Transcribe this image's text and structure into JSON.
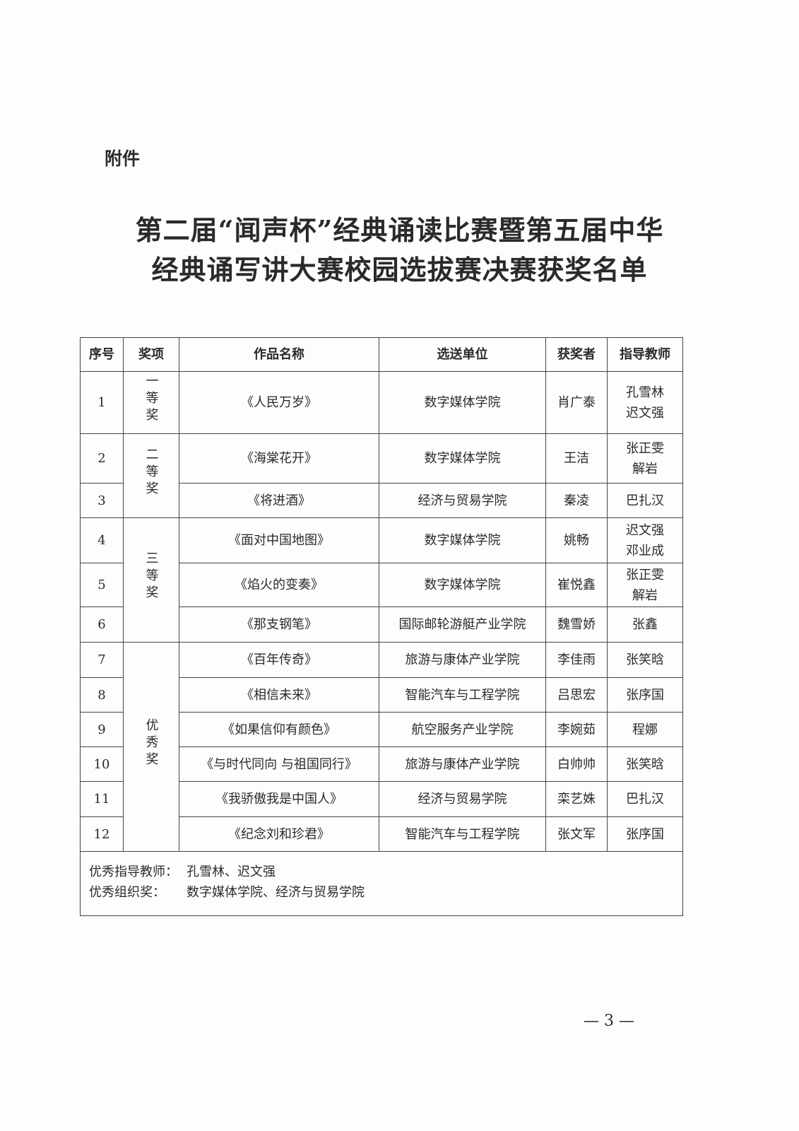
{
  "attachment_label": "附件",
  "title_lines": [
    "第二届“闻声杯”经典诵读比赛暨第五届中华",
    "经典诵写讲大赛校园选拔赛决赛获奖名单"
  ],
  "table": {
    "headers": [
      "序号",
      "奖项",
      "作品名称",
      "选送单位",
      "获奖者",
      "指导教师"
    ],
    "awards": [
      "一等奖",
      "二等奖",
      "三等奖",
      "优秀奖"
    ],
    "rows": [
      {
        "no": "1",
        "work": "《人民万岁》",
        "unit": "数字媒体学院",
        "winner": "肖广泰",
        "teacher": [
          "孔雪林",
          "迟文强"
        ]
      },
      {
        "no": "2",
        "work": "《海棠花开》",
        "unit": "数字媒体学院",
        "winner": "王洁",
        "teacher": [
          "张正雯",
          "解岩"
        ]
      },
      {
        "no": "3",
        "work": "《将进酒》",
        "unit": "经济与贸易学院",
        "winner": "秦凌",
        "teacher": [
          "巴扎汉"
        ]
      },
      {
        "no": "4",
        "work": "《面对中国地图》",
        "unit": "数字媒体学院",
        "winner": "姚畅",
        "teacher": [
          "迟文强",
          "邓业成"
        ]
      },
      {
        "no": "5",
        "work": "《焰火的变奏》",
        "unit": "数字媒体学院",
        "winner": "崔悦鑫",
        "teacher": [
          "张正雯",
          "解岩"
        ]
      },
      {
        "no": "6",
        "work": "《那支钢笔》",
        "unit": "国际邮轮游艇产业学院",
        "winner": "魏雪娇",
        "teacher": [
          "张鑫"
        ]
      },
      {
        "no": "7",
        "work": "《百年传奇》",
        "unit": "旅游与康体产业学院",
        "winner": "李佳雨",
        "teacher": [
          "张笑晗"
        ]
      },
      {
        "no": "8",
        "work": "《相信未来》",
        "unit": "智能汽车与工程学院",
        "winner": "吕思宏",
        "teacher": [
          "张序国"
        ]
      },
      {
        "no": "9",
        "work": "《如果信仰有颜色》",
        "unit": "航空服务产业学院",
        "winner": "李婉茹",
        "teacher": [
          "程娜"
        ]
      },
      {
        "no": "10",
        "work": "《与时代同向 与祖国同行》",
        "unit": "旅游与康体产业学院",
        "winner": "白帅帅",
        "teacher": [
          "张笑晗"
        ]
      },
      {
        "no": "11",
        "work": "《我骄傲我是中国人》",
        "unit": "经济与贸易学院",
        "winner": "栾艺姝",
        "teacher": [
          "巴扎汉"
        ]
      },
      {
        "no": "12",
        "work": "《纪念刘和珍君》",
        "unit": "智能汽车与工程学院",
        "winner": "张文军",
        "teacher": [
          "张序国"
        ]
      }
    ],
    "footer": [
      {
        "label": "优秀指导教师：",
        "value": "孔雪林、迟文强"
      },
      {
        "label": "优秀组织奖：",
        "value": "数字媒体学院、经济与贸易学院"
      }
    ]
  },
  "page_number": "— 3 —"
}
